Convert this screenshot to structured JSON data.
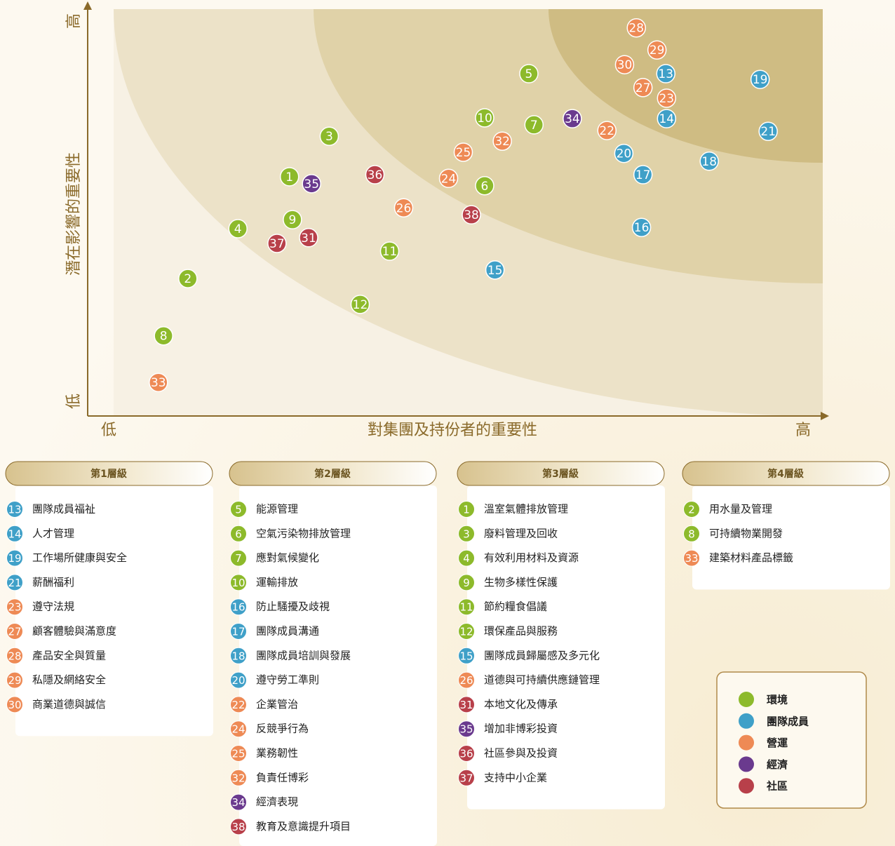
{
  "chart_data": {
    "type": "scatter",
    "x_label": "對集團及持份者的重要性",
    "y_label": "潛在影響的重要性",
    "xlim": [
      0,
      100
    ],
    "ylim": [
      0,
      100
    ],
    "xticks": [
      {
        "value": 0,
        "label": "低"
      },
      {
        "value": 100,
        "label": "高"
      }
    ],
    "yticks": [
      {
        "value": 0,
        "label": "低"
      },
      {
        "value": 100,
        "label": "高"
      }
    ],
    "series": [
      {
        "name": "環境",
        "color": "#8dba2b",
        "labels": [
          "1",
          "2",
          "3",
          "4",
          "5",
          "6",
          "7",
          "8",
          "9",
          "10",
          "11",
          "12"
        ],
        "x": [
          27.4,
          13.6,
          32.8,
          20.4,
          59.9,
          53.9,
          60.6,
          10.3,
          27.8,
          53.9,
          41.0,
          37.0
        ],
        "values": [
          58.5,
          33.6,
          68.4,
          45.8,
          83.7,
          56.3,
          71.2,
          19.6,
          48.0,
          72.9,
          40.3,
          27.3
        ]
      },
      {
        "name": "團隊成員",
        "color": "#3fa0c8",
        "labels": [
          "13",
          "14",
          "15",
          "16",
          "17",
          "18",
          "19",
          "20",
          "21"
        ],
        "x": [
          78.5,
          78.6,
          55.3,
          75.2,
          75.4,
          84.4,
          91.3,
          72.8,
          92.4
        ],
        "values": [
          83.7,
          72.7,
          35.7,
          46.1,
          59.0,
          62.3,
          82.3,
          64.2,
          69.6
        ]
      },
      {
        "name": "營運",
        "color": "#ee8a55",
        "labels": [
          "22",
          "23",
          "24",
          "25",
          "26",
          "27",
          "28",
          "29",
          "30",
          "32",
          "33"
        ],
        "x": [
          70.5,
          78.6,
          49.0,
          51.0,
          42.9,
          75.4,
          74.5,
          77.3,
          72.9,
          56.3,
          9.6
        ],
        "values": [
          69.8,
          77.7,
          58.1,
          64.5,
          50.9,
          80.3,
          94.9,
          89.5,
          85.9,
          67.2,
          8.2
        ]
      },
      {
        "name": "經濟",
        "color": "#6a3a8e",
        "labels": [
          "34",
          "35"
        ],
        "x": [
          65.8,
          30.4
        ],
        "values": [
          72.7,
          56.8
        ]
      },
      {
        "name": "社區",
        "color": "#b8404a",
        "labels": [
          "31",
          "36",
          "37",
          "38"
        ],
        "x": [
          30.0,
          39.0,
          25.7,
          52.1
        ],
        "values": [
          43.6,
          59.0,
          42.2,
          49.2
        ]
      }
    ]
  },
  "tiers": [
    {
      "title": "第1層級",
      "items": [
        {
          "id": "13",
          "text": "團隊成員福祉"
        },
        {
          "id": "14",
          "text": "人才管理"
        },
        {
          "id": "19",
          "text": "工作場所健康與安全"
        },
        {
          "id": "21",
          "text": "薪酬福利"
        },
        {
          "id": "23",
          "text": "遵守法規"
        },
        {
          "id": "27",
          "text": "顧客體驗與滿意度"
        },
        {
          "id": "28",
          "text": "產品安全與質量"
        },
        {
          "id": "29",
          "text": "私隱及網絡安全"
        },
        {
          "id": "30",
          "text": "商業道德與誠信"
        }
      ]
    },
    {
      "title": "第2層級",
      "items": [
        {
          "id": "5",
          "text": "能源管理"
        },
        {
          "id": "6",
          "text": "空氣污染物排放管理"
        },
        {
          "id": "7",
          "text": "應對氣候變化"
        },
        {
          "id": "10",
          "text": "運輸排放"
        },
        {
          "id": "16",
          "text": "防止騷擾及歧視"
        },
        {
          "id": "17",
          "text": "團隊成員溝通"
        },
        {
          "id": "18",
          "text": "團隊成員培訓與發展"
        },
        {
          "id": "20",
          "text": "遵守勞工準則"
        },
        {
          "id": "22",
          "text": "企業管治"
        },
        {
          "id": "24",
          "text": "反競爭行為"
        },
        {
          "id": "25",
          "text": "業務韌性"
        },
        {
          "id": "32",
          "text": "負責任博彩"
        },
        {
          "id": "34",
          "text": "經濟表現"
        },
        {
          "id": "38",
          "text": "教育及意識提升項目"
        }
      ]
    },
    {
      "title": "第3層級",
      "items": [
        {
          "id": "1",
          "text": "溫室氣體排放管理"
        },
        {
          "id": "3",
          "text": "廢料管理及回收"
        },
        {
          "id": "4",
          "text": "有效利用材料及資源"
        },
        {
          "id": "9",
          "text": "生物多樣性保護"
        },
        {
          "id": "11",
          "text": "節約糧食倡議"
        },
        {
          "id": "12",
          "text": "環保產品與服務"
        },
        {
          "id": "15",
          "text": "團隊成員歸屬感及多元化"
        },
        {
          "id": "26",
          "text": "道德與可持續供應鏈管理"
        },
        {
          "id": "31",
          "text": "本地文化及傳承"
        },
        {
          "id": "35",
          "text": "增加非博彩投資"
        },
        {
          "id": "36",
          "text": "社區參與及投資"
        },
        {
          "id": "37",
          "text": "支持中小企業"
        }
      ]
    },
    {
      "title": "第4層級",
      "items": [
        {
          "id": "2",
          "text": "用水量及管理"
        },
        {
          "id": "8",
          "text": "可持續物業開發"
        },
        {
          "id": "33",
          "text": "建築材料產品標籤"
        }
      ]
    }
  ]
}
